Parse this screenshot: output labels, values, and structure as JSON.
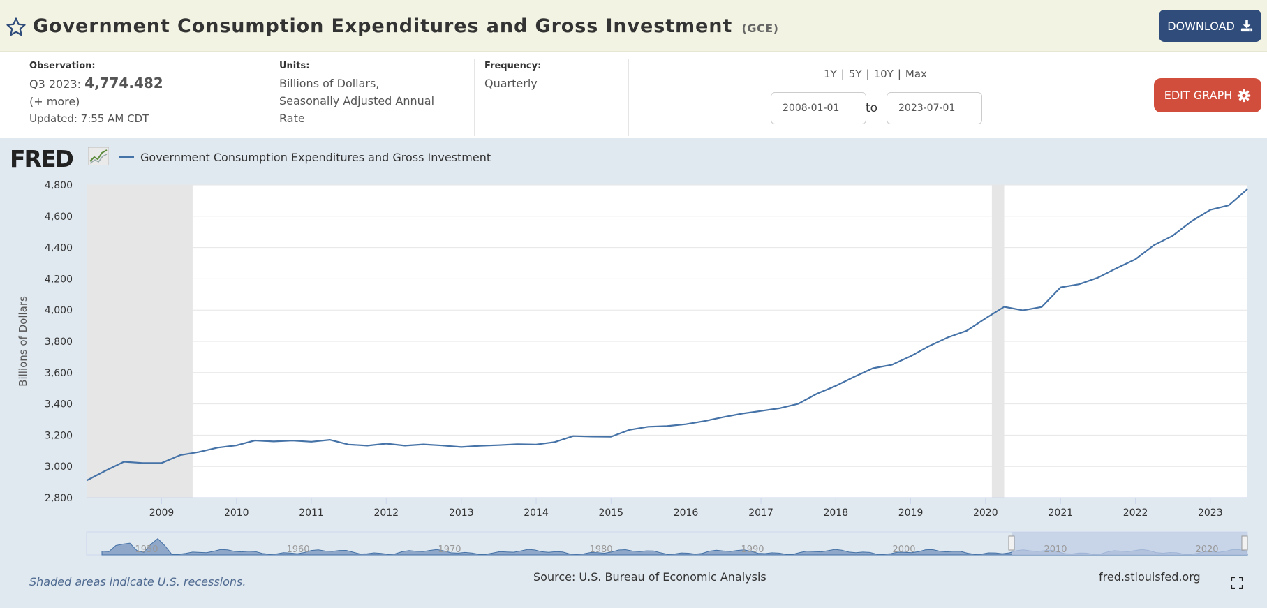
{
  "header": {
    "title": "Government Consumption Expenditures and Gross Investment",
    "series_code": "(GCE)",
    "download_label": "DOWNLOAD",
    "star_icon": "star-icon",
    "download_icon": "download-icon"
  },
  "meta": {
    "observation_label": "Observation:",
    "observation_period": "Q3 2023:",
    "observation_value": "4,774.482",
    "more_label": "(+ more)",
    "updated": "Updated: 7:55 AM CDT",
    "units_label": "Units:",
    "units_line1": "Billions of Dollars,",
    "units_line2": "Seasonally Adjusted Annual",
    "units_line3": "Rate",
    "frequency_label": "Frequency:",
    "frequency_value": "Quarterly"
  },
  "range": {
    "links": [
      "1Y",
      "5Y",
      "10Y",
      "Max"
    ],
    "start_date": "2008-01-01",
    "to_label": "to",
    "end_date": "2023-07-01",
    "edit_label": "EDIT GRAPH",
    "edit_icon": "gear-icon"
  },
  "graph": {
    "logo_text": "FRED",
    "legend_label": "Government Consumption Expenditures and Gross Investment",
    "recession_note": "Shaded areas indicate U.S. recessions.",
    "source": "Source: U.S. Bureau of Economic Analysis",
    "site": "fred.stlouisfed.org",
    "fullscreen_icon": "fullscreen-icon",
    "colors": {
      "line": "#4572a7",
      "background": "#e1e9f0",
      "plot": "#ffffff",
      "recession": "#e6e6e6",
      "navigator_fill": "#8fa7c8",
      "navigator_selection": "#bfcce6"
    }
  },
  "chart_data": {
    "type": "line",
    "title": "Government Consumption Expenditures and Gross Investment",
    "ylabel": "Billions of Dollars",
    "xlabel": "",
    "ylim": [
      2800,
      4800
    ],
    "xlim": [
      "2008-01-01",
      "2023-07-01"
    ],
    "yticks": [
      "2,800",
      "3,000",
      "3,200",
      "3,400",
      "3,600",
      "3,800",
      "4,000",
      "4,200",
      "4,400",
      "4,600",
      "4,800"
    ],
    "ytick_values": [
      2800,
      3000,
      3200,
      3400,
      3600,
      3800,
      4000,
      4200,
      4400,
      4600,
      4800
    ],
    "xticks": [
      "2009",
      "2010",
      "2011",
      "2012",
      "2013",
      "2014",
      "2015",
      "2016",
      "2017",
      "2018",
      "2019",
      "2020",
      "2021",
      "2022",
      "2023"
    ],
    "grid": true,
    "legend": "top-left",
    "recessions": [
      {
        "start": "2008-01-01",
        "end": "2009-06-01"
      },
      {
        "start": "2020-02-01",
        "end": "2020-04-01"
      }
    ],
    "series": [
      {
        "name": "Government Consumption Expenditures and Gross Investment",
        "x": [
          "2008-01-01",
          "2008-04-01",
          "2008-07-01",
          "2008-10-01",
          "2009-01-01",
          "2009-04-01",
          "2009-07-01",
          "2009-10-01",
          "2010-01-01",
          "2010-04-01",
          "2010-07-01",
          "2010-10-01",
          "2011-01-01",
          "2011-04-01",
          "2011-07-01",
          "2011-10-01",
          "2012-01-01",
          "2012-04-01",
          "2012-07-01",
          "2012-10-01",
          "2013-01-01",
          "2013-04-01",
          "2013-07-01",
          "2013-10-01",
          "2014-01-01",
          "2014-04-01",
          "2014-07-01",
          "2014-10-01",
          "2015-01-01",
          "2015-04-01",
          "2015-07-01",
          "2015-10-01",
          "2016-01-01",
          "2016-04-01",
          "2016-07-01",
          "2016-10-01",
          "2017-01-01",
          "2017-04-01",
          "2017-07-01",
          "2017-10-01",
          "2018-01-01",
          "2018-04-01",
          "2018-07-01",
          "2018-10-01",
          "2019-01-01",
          "2019-04-01",
          "2019-07-01",
          "2019-10-01",
          "2020-01-01",
          "2020-04-01",
          "2020-07-01",
          "2020-10-01",
          "2021-01-01",
          "2021-04-01",
          "2021-07-01",
          "2021-10-01",
          "2022-01-01",
          "2022-04-01",
          "2022-07-01",
          "2022-10-01",
          "2023-01-01",
          "2023-04-01",
          "2023-07-01"
        ],
        "values": [
          2910,
          2972,
          3030,
          3022,
          3022,
          3072,
          3092,
          3120,
          3135,
          3166,
          3160,
          3165,
          3158,
          3170,
          3140,
          3133,
          3146,
          3133,
          3141,
          3134,
          3124,
          3132,
          3136,
          3142,
          3140,
          3156,
          3194,
          3191,
          3190,
          3234,
          3254,
          3258,
          3270,
          3290,
          3315,
          3338,
          3355,
          3372,
          3400,
          3465,
          3515,
          3573,
          3628,
          3650,
          3705,
          3770,
          3825,
          3868,
          3947,
          4021,
          3998,
          4020,
          4145,
          4165,
          4207,
          4268,
          4325,
          4415,
          4475,
          4568,
          4641,
          4670,
          4774
        ]
      }
    ]
  }
}
